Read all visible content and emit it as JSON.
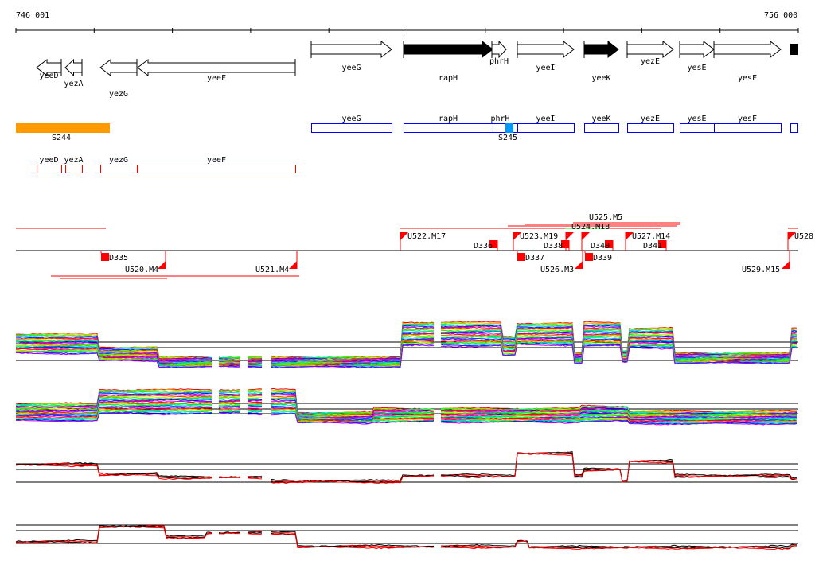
{
  "ruler": {
    "start_label": "746 001",
    "end_label": "756 000"
  },
  "genes": [
    {
      "name": "yeeD",
      "strand": "-",
      "filled": false
    },
    {
      "name": "yezA",
      "strand": "-",
      "filled": false
    },
    {
      "name": "yezG",
      "strand": "-",
      "filled": false
    },
    {
      "name": "yeeF",
      "strand": "-",
      "filled": false
    },
    {
      "name": "yeeG",
      "strand": "+",
      "filled": false
    },
    {
      "name": "rapH",
      "strand": "+",
      "filled": true
    },
    {
      "name": "phrH",
      "strand": "+",
      "filled": false
    },
    {
      "name": "yeeI",
      "strand": "+",
      "filled": false
    },
    {
      "name": "yeeK",
      "strand": "+",
      "filled": true
    },
    {
      "name": "yezE",
      "strand": "+",
      "filled": false
    },
    {
      "name": "yesE",
      "strand": "+",
      "filled": false
    },
    {
      "name": "yesF",
      "strand": "+",
      "filled": false
    }
  ],
  "operons_plus": [
    "yeeG",
    "rapH",
    "phrH",
    "yeeI",
    "yeeK",
    "yezE",
    "yesE",
    "yesF"
  ],
  "operons_minus": [
    "yeeD",
    "yezA",
    "yezG",
    "yeeF"
  ],
  "sigma_sites": [
    "S244",
    "S245"
  ],
  "transcript_marks_up": [
    "U522.M17",
    "D336",
    "U523.M19",
    "D338",
    "U524.M18",
    "U525.M5",
    "D340",
    "U527.M14",
    "D341",
    "U528"
  ],
  "transcript_marks_down": [
    "D335",
    "U520.M4",
    "U521.M4",
    "D337",
    "U526.M3",
    "D339",
    "U529.M15"
  ],
  "colors": {
    "operon_plus": "#0000ff",
    "operon_minus": "#ff0000",
    "sigma": "#ff9900",
    "sigma2": "#0099ff",
    "mark": "#ff0000"
  }
}
